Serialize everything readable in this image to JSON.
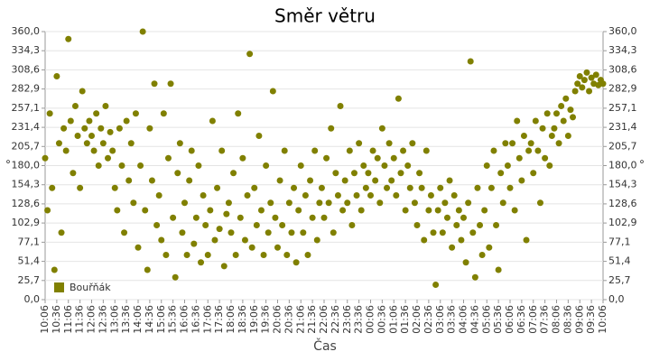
{
  "chart_data": {
    "type": "scatter",
    "title": "Směr větru",
    "x_label": "Čas",
    "y_label": "°",
    "x": [
      "10:06",
      "10:12",
      "10:18",
      "10:24",
      "10:30",
      "10:36",
      "10:42",
      "10:48",
      "10:54",
      "11:00",
      "11:06",
      "11:12",
      "11:18",
      "11:24",
      "11:30",
      "11:36",
      "11:42",
      "11:48",
      "11:54",
      "12:00",
      "12:06",
      "12:12",
      "12:18",
      "12:24",
      "12:30",
      "12:36",
      "12:42",
      "12:48",
      "12:54",
      "13:00",
      "13:06",
      "13:12",
      "13:18",
      "13:24",
      "13:30",
      "13:36",
      "13:42",
      "13:48",
      "13:54",
      "14:00",
      "14:06",
      "14:12",
      "14:18",
      "14:24",
      "14:30",
      "14:36",
      "14:42",
      "14:48",
      "14:54",
      "15:00",
      "15:06",
      "15:12",
      "15:18",
      "15:24",
      "15:30",
      "15:36",
      "15:42",
      "15:48",
      "15:54",
      "16:00",
      "16:06",
      "16:12",
      "16:18",
      "16:24",
      "16:30",
      "16:36",
      "16:42",
      "16:48",
      "16:54",
      "17:00",
      "17:06",
      "17:12",
      "17:18",
      "17:24",
      "17:30",
      "17:36",
      "17:42",
      "17:48",
      "17:54",
      "18:00",
      "18:06",
      "18:12",
      "18:18",
      "18:24",
      "18:30",
      "18:36",
      "18:42",
      "18:48",
      "18:54",
      "19:00",
      "19:06",
      "19:12",
      "19:18",
      "19:24",
      "19:30",
      "19:36",
      "19:42",
      "19:48",
      "19:54",
      "20:00",
      "20:06",
      "20:12",
      "20:18",
      "20:24",
      "20:30",
      "20:36",
      "20:42",
      "20:48",
      "20:54",
      "21:00",
      "21:06",
      "21:12",
      "21:18",
      "21:24",
      "21:30",
      "21:36",
      "21:42",
      "21:48",
      "21:54",
      "22:00",
      "22:06",
      "22:12",
      "22:18",
      "22:24",
      "22:30",
      "22:36",
      "22:42",
      "22:48",
      "22:54",
      "23:00",
      "23:06",
      "23:12",
      "23:18",
      "23:24",
      "23:30",
      "23:36",
      "23:42",
      "23:48",
      "23:54",
      "00:00",
      "00:06",
      "00:12",
      "00:18",
      "00:24",
      "00:30",
      "00:36",
      "00:42",
      "00:48",
      "00:54",
      "01:00",
      "01:06",
      "01:12",
      "01:18",
      "01:24",
      "01:30",
      "01:36",
      "01:42",
      "01:48",
      "01:54",
      "02:00",
      "02:06",
      "02:12",
      "02:18",
      "02:24",
      "02:30",
      "02:36",
      "02:42",
      "02:48",
      "02:54",
      "03:00",
      "03:06",
      "03:12",
      "03:18",
      "03:24",
      "03:30",
      "03:36",
      "03:42",
      "03:48",
      "03:54",
      "04:00",
      "04:06",
      "04:12",
      "04:18",
      "04:24",
      "04:30",
      "04:36",
      "04:42",
      "04:48",
      "04:54",
      "05:00",
      "05:06",
      "05:12",
      "05:18",
      "05:24",
      "05:30",
      "05:36",
      "05:42",
      "05:48",
      "05:54",
      "06:00",
      "06:06",
      "06:12",
      "06:18",
      "06:24",
      "06:30",
      "06:36",
      "06:42",
      "06:48",
      "06:54",
      "07:00",
      "07:06",
      "07:12",
      "07:18",
      "07:24",
      "07:30",
      "07:36",
      "07:42",
      "07:48",
      "07:54",
      "08:00",
      "08:06",
      "08:12",
      "08:18",
      "08:24",
      "08:30",
      "08:36",
      "08:42",
      "08:48",
      "08:54",
      "09:00",
      "09:06",
      "09:12",
      "09:18",
      "09:24",
      "09:30",
      "09:36",
      "09:42",
      "09:48",
      "09:54",
      "10:00",
      "10:06"
    ],
    "series": [
      {
        "name": "Bouřňák",
        "color": "#808000",
        "values": [
          190,
          120,
          250,
          150,
          40,
          300,
          210,
          90,
          230,
          200,
          350,
          240,
          170,
          260,
          220,
          150,
          280,
          230,
          210,
          240,
          220,
          200,
          250,
          180,
          230,
          210,
          260,
          190,
          225,
          200,
          150,
          120,
          230,
          180,
          90,
          240,
          160,
          210,
          130,
          250,
          70,
          180,
          360,
          120,
          40,
          230,
          160,
          290,
          100,
          140,
          80,
          250,
          60,
          190,
          290,
          110,
          30,
          170,
          210,
          90,
          130,
          60,
          160,
          200,
          75,
          110,
          180,
          50,
          140,
          100,
          60,
          120,
          240,
          80,
          150,
          95,
          200,
          45,
          115,
          130,
          90,
          170,
          60,
          250,
          110,
          190,
          80,
          140,
          330,
          70,
          150,
          100,
          220,
          120,
          60,
          180,
          90,
          130,
          280,
          110,
          70,
          160,
          100,
          200,
          60,
          130,
          90,
          150,
          50,
          120,
          180,
          90,
          140,
          60,
          160,
          110,
          200,
          80,
          130,
          150,
          110,
          190,
          130,
          230,
          90,
          170,
          140,
          260,
          120,
          160,
          130,
          200,
          100,
          170,
          140,
          210,
          120,
          180,
          150,
          170,
          140,
          200,
          160,
          190,
          130,
          230,
          180,
          150,
          210,
          160,
          190,
          140,
          270,
          170,
          200,
          120,
          180,
          150,
          210,
          130,
          100,
          170,
          150,
          80,
          200,
          120,
          140,
          90,
          20,
          120,
          150,
          90,
          130,
          110,
          160,
          70,
          140,
          100,
          120,
          80,
          110,
          50,
          130,
          320,
          90,
          30,
          150,
          100,
          60,
          120,
          180,
          70,
          150,
          200,
          100,
          40,
          170,
          130,
          210,
          180,
          150,
          210,
          120,
          240,
          190,
          160,
          220,
          80,
          200,
          210,
          170,
          240,
          200,
          130,
          230,
          190,
          250,
          180,
          220,
          230,
          250,
          210,
          260,
          240,
          270,
          220,
          255,
          245,
          280,
          290,
          300,
          285,
          295,
          305,
          280,
          298,
          290,
          302,
          288,
          295,
          290
        ]
      }
    ],
    "xticks": [
      "10:06",
      "10:36",
      "11:06",
      "11:36",
      "12:06",
      "12:36",
      "13:06",
      "13:36",
      "14:06",
      "14:36",
      "15:06",
      "15:36",
      "16:06",
      "16:36",
      "17:06",
      "17:36",
      "18:06",
      "18:36",
      "19:06",
      "19:36",
      "20:06",
      "20:36",
      "21:06",
      "21:36",
      "22:06",
      "22:36",
      "23:06",
      "23:36",
      "00:06",
      "00:36",
      "01:06",
      "01:36",
      "02:06",
      "02:36",
      "03:06",
      "03:36",
      "04:06",
      "04:36",
      "05:06",
      "05:36",
      "06:06",
      "06:36",
      "07:06",
      "07:36",
      "08:06",
      "08:36",
      "09:06",
      "09:36",
      "10:06"
    ],
    "ylim": [
      0,
      360
    ],
    "yticks": [
      {
        "value": 0,
        "label": "0,0"
      },
      {
        "value": 25.7,
        "label": "25,7"
      },
      {
        "value": 51.4,
        "label": "51,4"
      },
      {
        "value": 77.1,
        "label": "77,1"
      },
      {
        "value": 102.9,
        "label": "102,9"
      },
      {
        "value": 128.6,
        "label": "128,6"
      },
      {
        "value": 154.3,
        "label": "154,3"
      },
      {
        "value": 180,
        "label": "180,0"
      },
      {
        "value": 205.7,
        "label": "205,7"
      },
      {
        "value": 231.4,
        "label": "231,4"
      },
      {
        "value": 257.1,
        "label": "257,1"
      },
      {
        "value": 282.9,
        "label": "282,9"
      },
      {
        "value": 308.6,
        "label": "308,6"
      },
      {
        "value": 334.3,
        "label": "334,3"
      },
      {
        "value": 360,
        "label": "360,0"
      }
    ],
    "grid": true,
    "legend": "bottom-left"
  }
}
